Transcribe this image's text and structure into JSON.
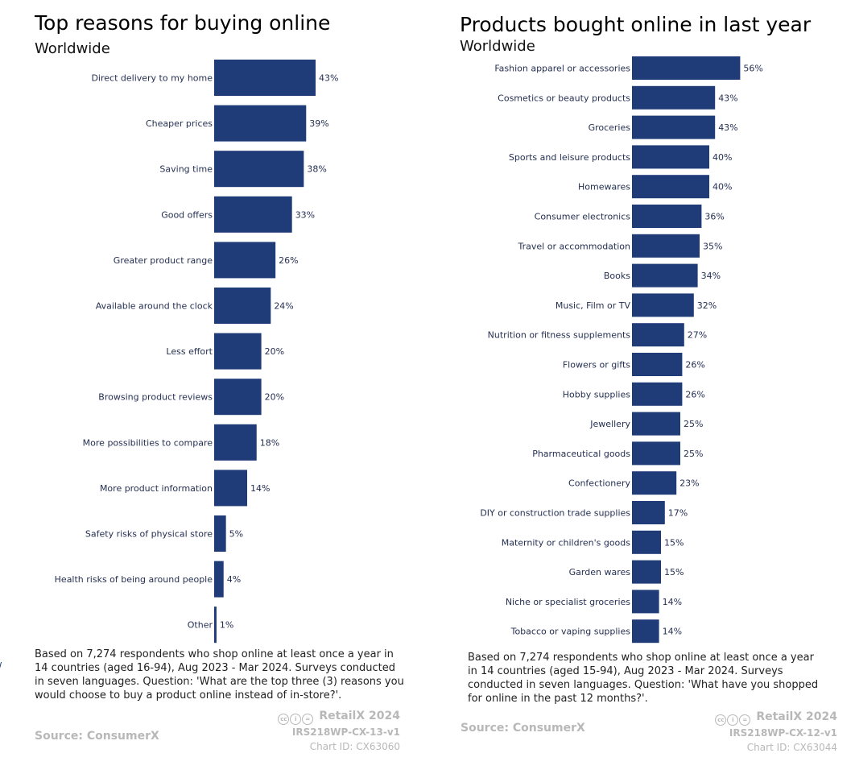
{
  "left": {
    "title": "Top reasons for buying online",
    "subtitle": "Worldwide",
    "note": "Based on 7,274 respondents who shop online at least once a year in 14 countries (aged 16-94), Aug 2023 - Mar 2024. Surveys conducted in seven languages. Question: 'What are the top three (3) reasons you would choose to buy a product online instead of in-store?'.",
    "source": "Source: ConsumerX",
    "brand": "RetailX 2024",
    "code": "IRS218WP-CX-13-v1",
    "chart_id": "Chart ID: CX63060"
  },
  "right": {
    "title": "Products bought online in last year",
    "subtitle": "Worldwide",
    "note": "Based on 7,274 respondents who shop online at least once a year in 14 countries (aged 15-94), Aug 2023 - Mar 2024. Surveys conducted in seven languages. Question: 'What have you shopped for online in the past 12 months?'.",
    "source": "Source: ConsumerX",
    "brand": "RetailX 2024",
    "code": "IRS218WP-CX-12-v1",
    "chart_id": "Chart ID: CX63044"
  },
  "colors": {
    "bar": "#1f3b78",
    "muted_text": "#b8b8b8"
  },
  "icons": [
    "creative-commons-icon",
    "attribution-icon",
    "no-derivatives-icon"
  ],
  "chart_data": [
    {
      "type": "bar",
      "orientation": "horizontal",
      "title": "Top reasons for buying online",
      "subtitle": "Worldwide",
      "value_format": "percent",
      "categories": [
        "Direct delivery to my home",
        "Cheaper prices",
        "Saving time",
        "Good offers",
        "Greater product range",
        "Available around the clock",
        "Less effort",
        "Browsing product reviews",
        "More possibilities to compare",
        "More product information",
        "Safety risks of physical store",
        "Health risks of being around people",
        "Other"
      ],
      "values": [
        43,
        39,
        38,
        33,
        26,
        24,
        20,
        20,
        18,
        14,
        5,
        4,
        1
      ],
      "labels": [
        "43%",
        "39%",
        "38%",
        "33%",
        "26%",
        "24%",
        "20%",
        "20%",
        "18%",
        "14%",
        "5%",
        "4%",
        "1%"
      ]
    },
    {
      "type": "bar",
      "orientation": "horizontal",
      "title": "Products bought online in last year",
      "subtitle": "Worldwide",
      "value_format": "percent",
      "categories": [
        "Fashion apparel or accessories",
        "Cosmetics or beauty products",
        "Groceries",
        "Sports and leisure products",
        "Homewares",
        "Consumer electronics",
        "Travel or accommodation",
        "Books",
        "Music, Film or TV",
        "Nutrition or fitness supplements",
        "Flowers or gifts",
        "Hobby supplies",
        "Jewellery",
        "Pharmaceutical goods",
        "Confectionery",
        "DIY or construction trade supplies",
        "Maternity or children's goods",
        "Garden wares",
        "Niche or specialist groceries",
        "Tobacco or vaping supplies"
      ],
      "values": [
        56,
        43,
        43,
        40,
        40,
        36,
        35,
        34,
        32,
        27,
        26,
        26,
        25,
        25,
        23,
        17,
        15,
        15,
        14,
        14
      ],
      "labels": [
        "56%",
        "43%",
        "43%",
        "40%",
        "40%",
        "36%",
        "35%",
        "34%",
        "32%",
        "27%",
        "26%",
        "26%",
        "25%",
        "25%",
        "23%",
        "17%",
        "15%",
        "15%",
        "14%",
        "14%"
      ]
    }
  ]
}
